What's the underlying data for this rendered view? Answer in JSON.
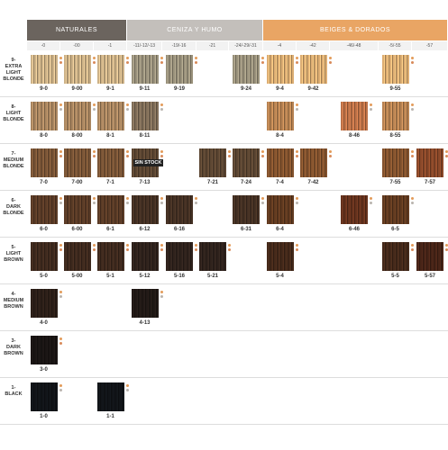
{
  "header": {
    "groups": [
      "NATURALES",
      "CENIZA Y HUMO",
      "BEIGES & DORADOS"
    ],
    "columns": [
      "-0",
      "-00",
      "-1",
      "-11/-12/-13",
      "-19/-16",
      "-21",
      "-24/-29/-31",
      "-4",
      "-42",
      "-46/-48",
      "-5/-55",
      "-57"
    ]
  },
  "rows": [
    {
      "label": [
        "9-",
        "EXTRA",
        "LIGHT",
        "BLONDE"
      ],
      "cells": [
        "9-0",
        "9-00",
        "9-1",
        "9-11",
        "9-19",
        null,
        "9-24",
        "9-4",
        "9-42",
        null,
        "9-55",
        null
      ]
    },
    {
      "label": [
        "8-",
        "LIGHT",
        "BLONDE"
      ],
      "cells": [
        "8-0",
        "8-00",
        "8-1",
        "8-11",
        null,
        null,
        null,
        "8-4",
        null,
        "8-46",
        "8-55",
        null
      ]
    },
    {
      "label": [
        "7-",
        "MEDIUM",
        "BLONDE"
      ],
      "cells": [
        "7-0",
        "7-00",
        "7-1",
        "7-13",
        null,
        "7-21",
        "7-24",
        "7-4",
        "7-42",
        null,
        "7-55",
        "7-57"
      ]
    },
    {
      "label": [
        "6-",
        "DARK",
        "BLONDE"
      ],
      "cells": [
        "6-0",
        "6-00",
        "6-1",
        "6-12",
        "6-16",
        null,
        "6-31",
        "6-4",
        null,
        "6-46",
        "6-5",
        null
      ]
    },
    {
      "label": [
        "5-",
        "LIGHT",
        "BROWN"
      ],
      "cells": [
        "5-0",
        "5-00",
        "5-1",
        "5-12",
        "5-16",
        "5-21",
        null,
        "5-4",
        null,
        null,
        "5-5",
        "5-57"
      ]
    },
    {
      "label": [
        "4-",
        "MEDIUM",
        "BROWN"
      ],
      "cells": [
        "4-0",
        null,
        null,
        "4-13",
        null,
        null,
        null,
        null,
        null,
        null,
        null,
        null
      ]
    },
    {
      "label": [
        "3-",
        "DARK",
        "BROWN"
      ],
      "cells": [
        "3-0",
        null,
        null,
        null,
        null,
        null,
        null,
        null,
        null,
        null,
        null,
        null
      ]
    },
    {
      "label": [
        "1-",
        "BLACK"
      ],
      "cells": [
        "1-0",
        null,
        "1-1",
        null,
        null,
        null,
        null,
        null,
        null,
        null,
        null,
        null
      ]
    }
  ],
  "overlay": {
    "row": 2,
    "column": 3,
    "text": "SIN STOCK"
  }
}
